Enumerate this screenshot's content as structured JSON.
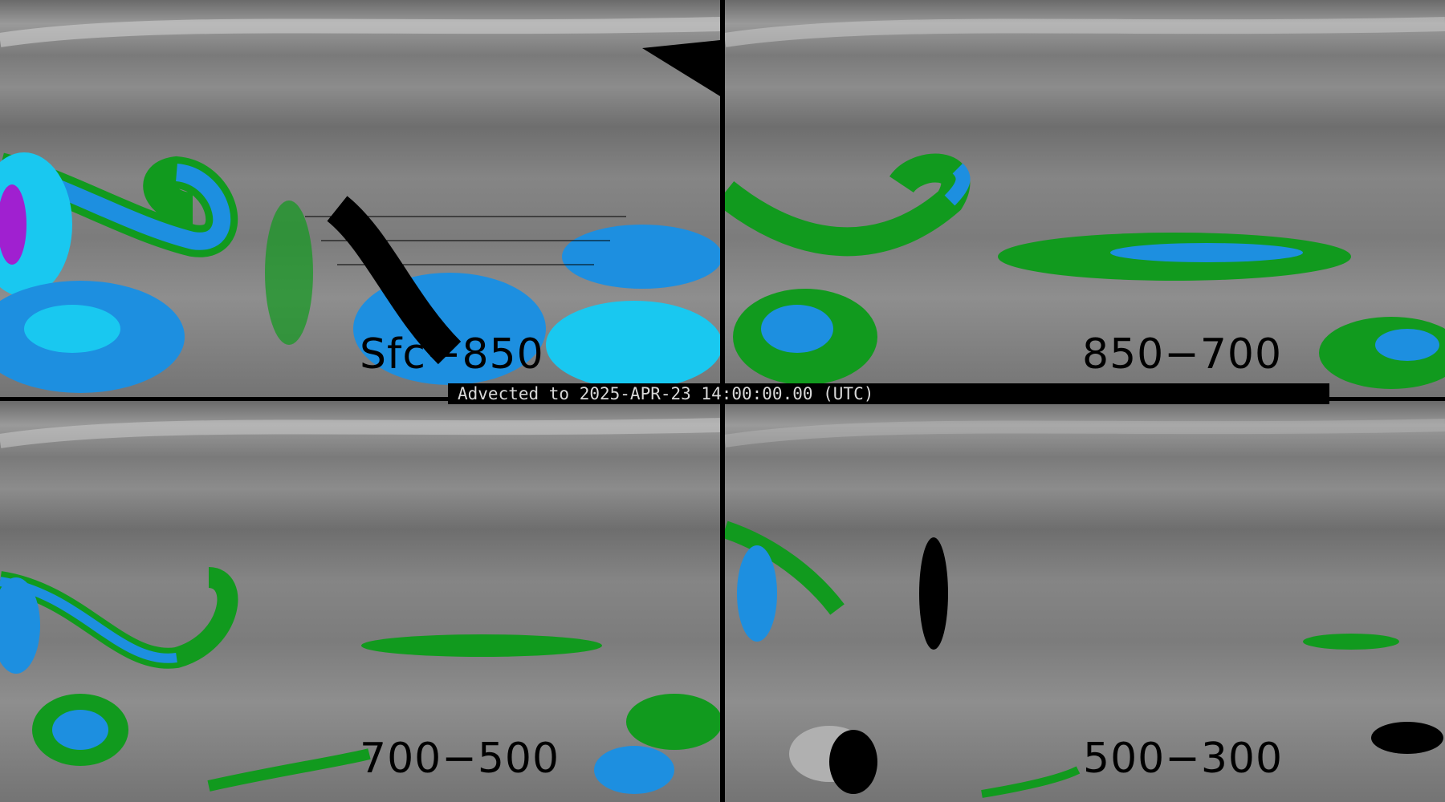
{
  "caption": "Advected to 2025-APR-23 14:00:00.00 (UTC)",
  "panels": [
    {
      "label": "Sfc−850"
    },
    {
      "label": "850−700"
    },
    {
      "label": "700−500"
    },
    {
      "label": "500−300"
    }
  ],
  "colors": {
    "background_gray": "#808080",
    "moisture_green": "#0f9a1f",
    "moisture_blue": "#1d8fe0",
    "moisture_cyan": "#19c8f0",
    "moisture_magenta": "#a020d0",
    "dry": "#000000"
  }
}
